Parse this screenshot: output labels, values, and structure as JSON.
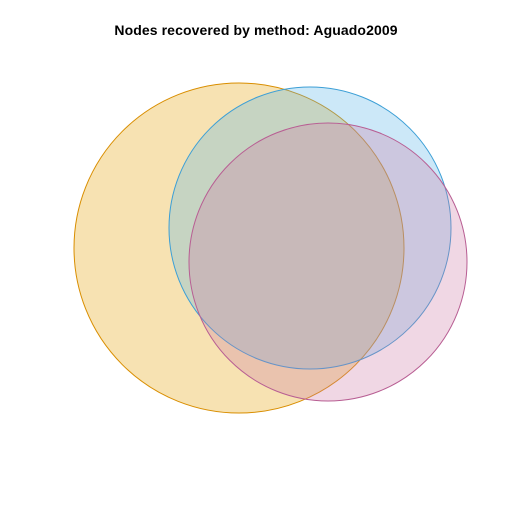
{
  "title": "Nodes recovered by method: Aguado2009",
  "diagram": {
    "type": "venn",
    "sets": [
      {
        "fill": "#E69F00",
        "stroke": "#D98E00"
      },
      {
        "fill": "#56B4E9",
        "stroke": "#3C9FD6"
      },
      {
        "fill": "#CC79A7",
        "stroke": "#B85E93"
      }
    ],
    "fill_opacity": 0.3
  }
}
